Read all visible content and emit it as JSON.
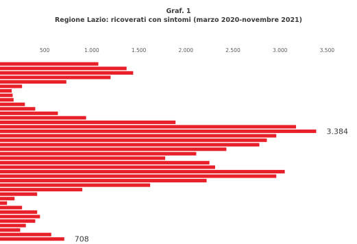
{
  "chart_data": {
    "type": "bar",
    "orientation": "horizontal",
    "title": "Graf. 1",
    "subtitle": "Regione Lazio: ricoverati con sintomi (marzo 2020-novembre 2021)",
    "xlabel": "",
    "ylabel": "",
    "xlim": [
      0,
      3500
    ],
    "ticks": [
      {
        "value": 500,
        "label": "500"
      },
      {
        "value": 1000,
        "label": "1.000"
      },
      {
        "value": 1500,
        "label": "1.500"
      },
      {
        "value": 2000,
        "label": "2.000"
      },
      {
        "value": 2500,
        "label": "2.500"
      },
      {
        "value": 3000,
        "label": "3.000"
      },
      {
        "value": 3500,
        "label": "3.500"
      }
    ],
    "grid": false,
    "bar_color": "#e8202a",
    "values": [
      1070,
      1370,
      1440,
      1200,
      730,
      260,
      150,
      160,
      170,
      290,
      400,
      640,
      940,
      1890,
      3170,
      3384,
      2960,
      2860,
      2780,
      2430,
      2110,
      1780,
      2250,
      2310,
      3050,
      2960,
      2220,
      1620,
      900,
      420,
      180,
      100,
      260,
      420,
      450,
      400,
      300,
      240,
      570,
      708
    ],
    "data_labels": [
      {
        "index": 15,
        "text": "3.384"
      },
      {
        "index": 39,
        "text": "708"
      }
    ]
  }
}
